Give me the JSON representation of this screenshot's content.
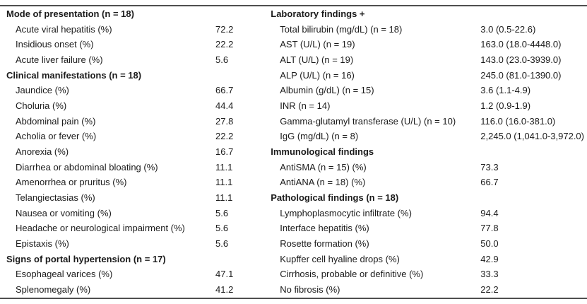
{
  "colors": {
    "background": "#ffffff",
    "text": "#1b1b1b",
    "rule_line": "#4f4f4f"
  },
  "table": {
    "columns": [
      {
        "name": "left",
        "rows": [
          {
            "type": "header",
            "label": "Mode of presentation (n = 18)",
            "value": ""
          },
          {
            "type": "item",
            "label": "Acute viral hepatitis (%)",
            "value": "72.2"
          },
          {
            "type": "item",
            "label": "Insidious onset (%)",
            "value": "22.2"
          },
          {
            "type": "item",
            "label": "Acute liver failure (%)",
            "value": "5.6"
          },
          {
            "type": "header",
            "label": "Clinical manifestations (n = 18)",
            "value": ""
          },
          {
            "type": "item",
            "label": "Jaundice (%)",
            "value": "66.7"
          },
          {
            "type": "item",
            "label": "Choluria (%)",
            "value": "44.4"
          },
          {
            "type": "item",
            "label": "Abdominal pain (%)",
            "value": "27.8"
          },
          {
            "type": "item",
            "label": "Acholia or fever (%)",
            "value": "22.2"
          },
          {
            "type": "item",
            "label": "Anorexia (%)",
            "value": "16.7"
          },
          {
            "type": "item",
            "label": "Diarrhea or abdominal bloating (%)",
            "value": "11.1"
          },
          {
            "type": "item",
            "label": "Amenorrhea or pruritus (%)",
            "value": "11.1"
          },
          {
            "type": "item",
            "label": "Telangiectasias (%)",
            "value": "11.1"
          },
          {
            "type": "item",
            "label": "Nausea or vomiting (%)",
            "value": "5.6"
          },
          {
            "type": "item",
            "label": "Headache or neurological impairment (%)",
            "value": "5.6"
          },
          {
            "type": "item",
            "label": "Epistaxis (%)",
            "value": "5.6"
          },
          {
            "type": "header",
            "label": "Signs of portal hypertension (n = 17)",
            "value": ""
          },
          {
            "type": "item",
            "label": "Esophageal varices (%)",
            "value": "47.1"
          },
          {
            "type": "item",
            "label": "Splenomegaly (%)",
            "value": "41.2"
          }
        ]
      },
      {
        "name": "right",
        "rows": [
          {
            "type": "header",
            "label": "Laboratory findings +",
            "value": ""
          },
          {
            "type": "item",
            "label": "Total bilirubin (mg/dL) (n = 18)",
            "value": "3.0 (0.5-22.6)"
          },
          {
            "type": "item",
            "label": "AST (U/L) (n = 19)",
            "value": "163.0 (18.0-4448.0)"
          },
          {
            "type": "item",
            "label": "ALT (U/L) (n = 19)",
            "value": "143.0 (23.0-3939.0)"
          },
          {
            "type": "item",
            "label": "ALP (U/L) (n = 16)",
            "value": "245.0 (81.0-1390.0)"
          },
          {
            "type": "item",
            "label": "Albumin (g/dL) (n = 15)",
            "value": "3.6 (1.1-4.9)"
          },
          {
            "type": "item",
            "label": "INR (n = 14)",
            "value": "1.2 (0.9-1.9)"
          },
          {
            "type": "item",
            "label": "Gamma-glutamyl transferase (U/L) (n = 10)",
            "value": "116.0 (16.0-381.0)"
          },
          {
            "type": "item",
            "label": "IgG (mg/dL) (n = 8)",
            "value": "2,245.0 (1,041.0-3,972.0)"
          },
          {
            "type": "header",
            "label": "Immunological findings",
            "value": ""
          },
          {
            "type": "item",
            "label": "AntiSMA (n = 15) (%)",
            "value": "73.3"
          },
          {
            "type": "item",
            "label": "AntiANA (n = 18) (%)",
            "value": "66.7"
          },
          {
            "type": "header",
            "label": "Pathological findings (n = 18)",
            "value": ""
          },
          {
            "type": "item",
            "label": "Lymphoplasmocytic infiltrate (%)",
            "value": "94.4"
          },
          {
            "type": "item",
            "label": "Interface hepatitis (%)",
            "value": "77.8"
          },
          {
            "type": "item",
            "label": "Rosette formation (%)",
            "value": "50.0"
          },
          {
            "type": "item",
            "label": "Kupffer cell hyaline drops (%)",
            "value": "42.9"
          },
          {
            "type": "item",
            "label": "Cirrhosis, probable or definitive (%)",
            "value": "33.3"
          },
          {
            "type": "item",
            "label": "No fibrosis (%)",
            "value": "22.2"
          }
        ]
      }
    ]
  }
}
